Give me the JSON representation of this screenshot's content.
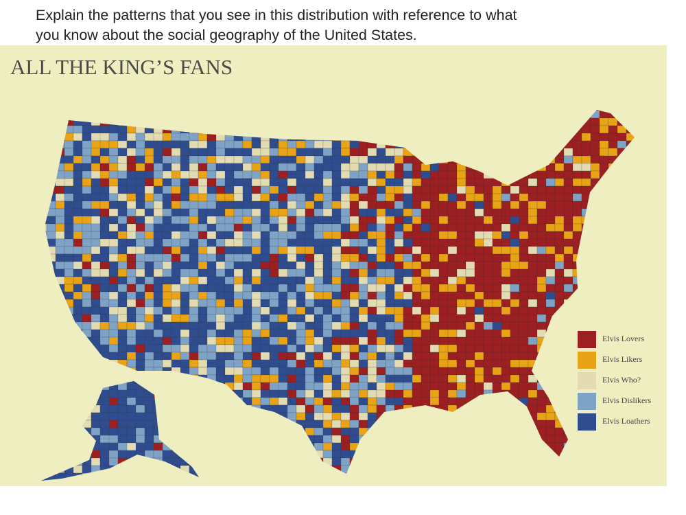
{
  "question": {
    "lines": [
      "Explain the patterns that you see in this distribution with reference to what",
      "you know about the social geography of the United States."
    ]
  },
  "map": {
    "title": "ALL THE KING’S FANS",
    "legend": [
      {
        "label": "Elvis Lovers",
        "color": "#9c1f22"
      },
      {
        "label": "Elvis Likers",
        "color": "#e8a316"
      },
      {
        "label": "Elvis Who?",
        "color": "#e3dcb2"
      },
      {
        "label": "Elvis Dislikers",
        "color": "#7fa3c6"
      },
      {
        "label": "Elvis Loathers",
        "color": "#2f4d8e"
      }
    ]
  }
}
